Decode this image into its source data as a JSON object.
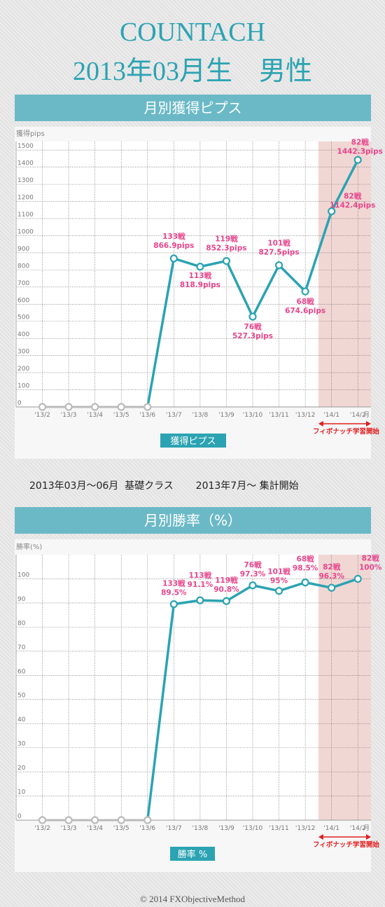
{
  "header": {
    "title": "COUNTACH",
    "subtitle": "2013年03月生　男性"
  },
  "pips_section": {
    "band_title": "月別獲得ピプス",
    "ylabel": "獲得pips",
    "legend": "獲得ピプス",
    "highlight_label": "フィボナッチ学習開始"
  },
  "winrate_section": {
    "band_title": "月別勝率（%）",
    "ylabel": "勝率(%)",
    "legend": "勝率 %",
    "highlight_label": "フィボナッチ学習開始"
  },
  "note": "2013年03月～06月  基礎クラス　    2013年7月～ 集計開始",
  "footer": "© 2014 FXObjectiveMethod",
  "colors": {
    "accent": "#2ba3b2",
    "band": "#6bb9c6",
    "annotation": "#e8458c",
    "highlight_fill": "#f1d7d4",
    "highlight_arrow": "#e02020",
    "gray_points": "#bbbbbb"
  },
  "chart_data": [
    {
      "type": "line",
      "categories": [
        "'13/2",
        "'13/3",
        "'13/4",
        "'13/5",
        "'13/6",
        "'13/7",
        "'13/8",
        "'13/9",
        "'13/10",
        "'13/11",
        "'13/12",
        "'14/1",
        "'14/2"
      ],
      "x_unit_label": "月",
      "values": [
        0,
        0,
        0,
        0,
        0,
        866.9,
        818.9,
        852.3,
        527.3,
        827.5,
        674.6,
        1142.4,
        1442.3
      ],
      "trades": [
        null,
        null,
        null,
        null,
        null,
        133,
        113,
        119,
        76,
        101,
        68,
        82,
        82
      ],
      "annotations": [
        "",
        "",
        "",
        "",
        "",
        "133戦\n866.9pips",
        "113戦\n818.9pips",
        "119戦\n852.3pips",
        "76戦\n527.3pips",
        "101戦\n827.5pips",
        "68戦\n674.6pips",
        "82戦\n1142.4pips",
        "82戦\n1442.3pips"
      ],
      "ylabel": "獲得pips",
      "ylim": [
        0,
        1550
      ],
      "yticks": [
        0,
        100,
        200,
        300,
        400,
        500,
        600,
        700,
        800,
        900,
        1000,
        1100,
        1200,
        1300,
        1400,
        1500
      ],
      "legend": "獲得ピプス",
      "highlight_from": "'14/1",
      "highlight_label": "フィボナッチ学習開始",
      "grid": true
    },
    {
      "type": "line",
      "categories": [
        "'13/2",
        "'13/3",
        "'13/4",
        "'13/5",
        "'13/6",
        "'13/7",
        "'13/8",
        "'13/9",
        "'13/10",
        "'13/11",
        "'13/12",
        "'14/1",
        "'14/2"
      ],
      "x_unit_label": "月",
      "values": [
        0,
        0,
        0,
        0,
        0,
        89.5,
        91.1,
        90.8,
        97.3,
        95,
        98.5,
        96.3,
        100
      ],
      "trades": [
        null,
        null,
        null,
        null,
        null,
        133,
        113,
        119,
        76,
        101,
        68,
        82,
        82
      ],
      "annotations": [
        "",
        "",
        "",
        "",
        "",
        "133戦\n89.5%",
        "113戦\n91.1%",
        "119戦\n90.8%",
        "76戦\n97.3%",
        "101戦\n95%",
        "68戦\n98.5%",
        "82戦\n96.3%",
        "82戦\n100%"
      ],
      "ylabel": "勝率(%)",
      "ylim": [
        0,
        110
      ],
      "yticks": [
        0,
        10,
        20,
        30,
        40,
        50,
        60,
        70,
        80,
        90,
        100
      ],
      "legend": "勝率 %",
      "highlight_from": "'14/1",
      "highlight_label": "フィボナッチ学習開始",
      "grid": true
    }
  ]
}
